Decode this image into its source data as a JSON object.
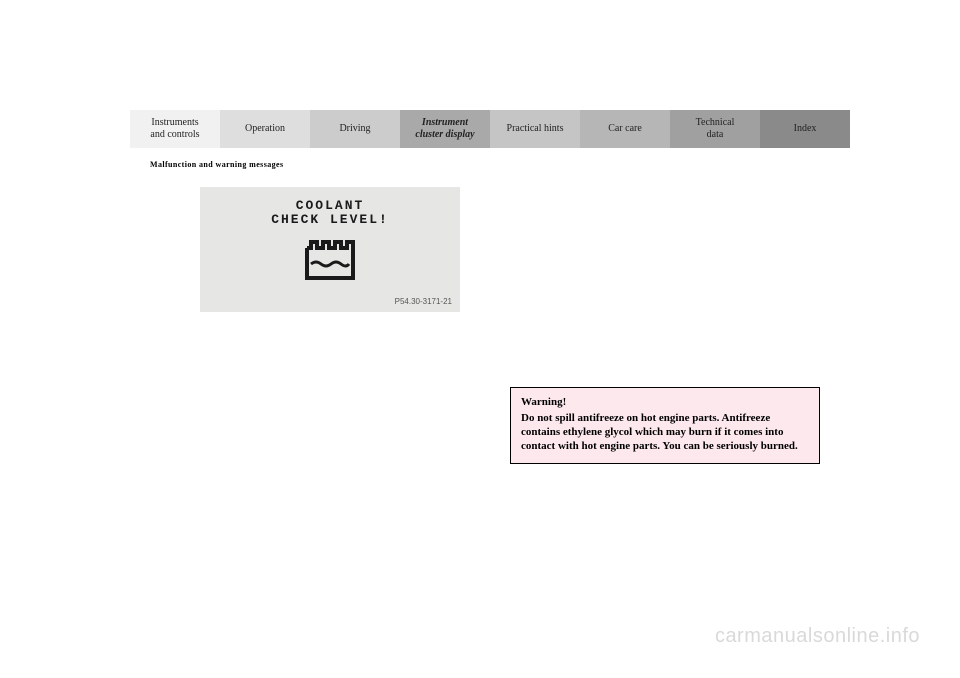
{
  "nav": {
    "tabs": [
      {
        "label": "Instruments\nand controls"
      },
      {
        "label": "Operation"
      },
      {
        "label": "Driving"
      },
      {
        "label": "Instrument\ncluster display"
      },
      {
        "label": "Practical hints"
      },
      {
        "label": "Car care"
      },
      {
        "label": "Technical\ndata"
      },
      {
        "label": "Index"
      }
    ],
    "active_index": 3
  },
  "section_heading": "Malfunction and warning messages",
  "display": {
    "line1": "COOLANT",
    "line2": "CHECK LEVEL!",
    "part_number": "P54.30-3171-21",
    "bg_color": "#e6e7e5",
    "icon_color": "#1a1a1a"
  },
  "warning": {
    "title": "Warning!",
    "body": "Do not spill antifreeze on hot engine parts. Antifreeze contains ethylene glycol which may burn if it comes into contact with hot engine parts. You can be seriously burned.",
    "bg_color": "#fde8ee",
    "border_color": "#000000"
  },
  "watermark": "carmanualsonline.info"
}
